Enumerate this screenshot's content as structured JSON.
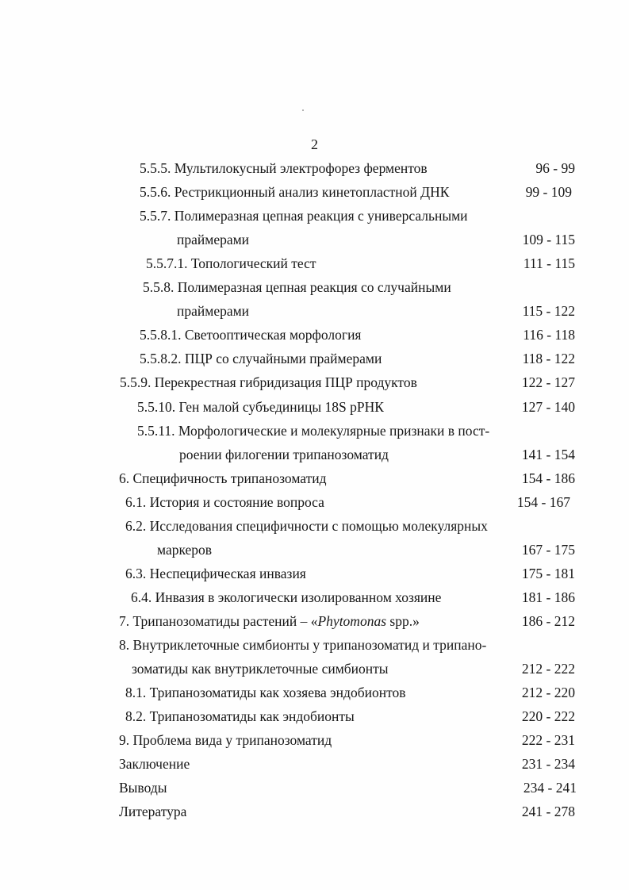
{
  "page_number": "2",
  "toc": [
    {
      "text": "5.5.5. Мультилокусный электрофорез ферментов",
      "pages": "96 - 99"
    },
    {
      "text": "5.5.6. Рестрикционный анализ кинетопластной ДНК",
      "pages": "99 - 109"
    },
    {
      "text": "5.5.7. Полимеразная цепная реакция с универсальными",
      "pages": ""
    },
    {
      "text": "праймерами",
      "pages": "109 - 115"
    },
    {
      "text": "5.5.7.1. Топологический тест",
      "pages": "111 - 115"
    },
    {
      "text": "5.5.8. Полимеразная цепная реакция со случайными",
      "pages": ""
    },
    {
      "text": "праймерами",
      "pages": "115 - 122"
    },
    {
      "text": "5.5.8.1. Светооптическая морфология",
      "pages": "116 - 118"
    },
    {
      "text": "5.5.8.2. ПЦР со случайными праймерами",
      "pages": "118 - 122"
    },
    {
      "text": "5.5.9. Перекрестная гибридизация ПЦР продуктов",
      "pages": "122 - 127"
    },
    {
      "text": "5.5.10. Ген малой субъединицы 18S рРНК",
      "pages": "127 - 140"
    },
    {
      "text": "5.5.11. Морфологические и молекулярные признаки в пост-",
      "pages": ""
    },
    {
      "text": "роении филогении трипанозоматид",
      "pages": "141 - 154"
    },
    {
      "text": "6. Специфичность трипанозоматид",
      "pages": "154 - 186"
    },
    {
      "text": "6.1. История и состояние вопроса",
      "pages": "154 - 167"
    },
    {
      "text": "6.2. Исследования специфичности с помощью молекулярных",
      "pages": ""
    },
    {
      "text": "маркеров",
      "pages": "167 - 175"
    },
    {
      "text": "6.3. Неспецифическая инвазия",
      "pages": "175 - 181"
    },
    {
      "text": "6.4. Инвазия в экологически изолированном хозяине",
      "pages": "181 - 186"
    },
    {
      "text": "7. Трипанозоматиды растений – «",
      "italic": "Phytomonas",
      "suffix": " spp.»",
      "pages": "186 - 212"
    },
    {
      "text": "8. Внутриклеточные симбионты у трипанозоматид и трипано-",
      "pages": ""
    },
    {
      "text": "зоматиды как внутриклеточные симбионты",
      "pages": "212 - 222"
    },
    {
      "text": "8.1. Трипанозоматиды как хозяева эндобионтов",
      "pages": "212 - 220"
    },
    {
      "text": "8.2. Трипанозоматиды как эндобионты",
      "pages": "220 - 222"
    },
    {
      "text": "9. Проблема вида у трипанозоматид",
      "pages": "222 - 231"
    },
    {
      "text": "Заключение",
      "pages": "231 - 234"
    },
    {
      "text": "Выводы",
      "pages": "234 - 241"
    },
    {
      "text": "Литература",
      "pages": "241 - 278"
    }
  ]
}
